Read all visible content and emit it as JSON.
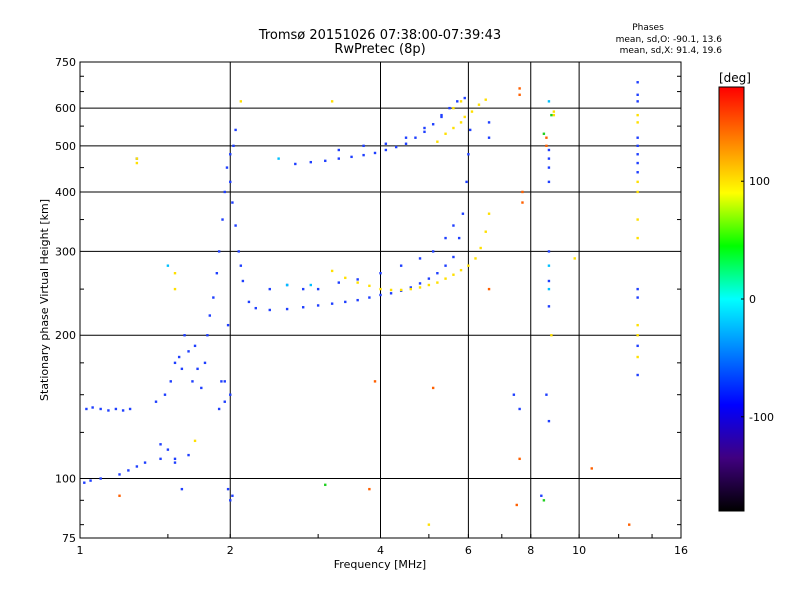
{
  "chart_data": {
    "type": "scatter",
    "title": "Tromsø 20151026 07:38:00-07:39:43",
    "subtitle": "RwPretec (8p)",
    "xlabel": "Frequency [MHz]",
    "ylabel": "Stationary phase Virtual Height [km]",
    "x_scale": "log2",
    "y_scale": "log",
    "xlim": [
      1,
      16
    ],
    "ylim": [
      75,
      750
    ],
    "x_ticks": [
      1,
      2,
      4,
      6,
      8,
      10,
      16
    ],
    "x_tick_labels": [
      "1",
      "2",
      "4",
      "6",
      "8",
      "10",
      "16"
    ],
    "y_ticks": [
      75,
      100,
      200,
      300,
      400,
      500,
      600,
      750
    ],
    "y_tick_labels": [
      "75",
      "100",
      "200",
      "300",
      "400",
      "500",
      "600",
      "750"
    ],
    "grid": true,
    "phases_box": {
      "heading": "Phases",
      "line_o": "mean, sd,O: -90.1, 13.6",
      "line_x": "mean, sd,X:  91.4, 19.6"
    },
    "colorbar": {
      "label": "[deg]",
      "range": [
        -180,
        180
      ],
      "ticks": [
        100,
        0,
        -100
      ],
      "tick_labels": [
        "100",
        "0",
        "-100"
      ],
      "colors": [
        "#ff0000",
        "#ff8000",
        "#ffff00",
        "#00ff00",
        "#00ffff",
        "#0080ff",
        "#0000ff",
        "#400080",
        "#000000"
      ]
    },
    "series": [
      {
        "mode": "O",
        "phase_deg": -90,
        "color": "#1f3fff",
        "points": [
          [
            1.02,
            98
          ],
          [
            1.05,
            99
          ],
          [
            1.1,
            100
          ],
          [
            1.2,
            102
          ],
          [
            1.25,
            104
          ],
          [
            1.3,
            106
          ],
          [
            1.35,
            108
          ],
          [
            1.45,
            110
          ],
          [
            1.55,
            108
          ],
          [
            1.65,
            112
          ],
          [
            1.03,
            140
          ],
          [
            1.06,
            141
          ],
          [
            1.1,
            140
          ],
          [
            1.14,
            139
          ],
          [
            1.18,
            140
          ],
          [
            1.22,
            139
          ],
          [
            1.26,
            140
          ],
          [
            1.42,
            145
          ],
          [
            1.48,
            150
          ],
          [
            1.52,
            160
          ],
          [
            1.55,
            175
          ],
          [
            1.58,
            180
          ],
          [
            1.6,
            170
          ],
          [
            1.62,
            200
          ],
          [
            1.65,
            185
          ],
          [
            1.68,
            160
          ],
          [
            1.7,
            190
          ],
          [
            1.72,
            170
          ],
          [
            1.75,
            155
          ],
          [
            1.78,
            175
          ],
          [
            1.8,
            200
          ],
          [
            1.82,
            220
          ],
          [
            1.85,
            240
          ],
          [
            1.88,
            270
          ],
          [
            1.9,
            300
          ],
          [
            1.93,
            350
          ],
          [
            1.95,
            400
          ],
          [
            1.97,
            450
          ],
          [
            2.0,
            420
          ],
          [
            2.02,
            380
          ],
          [
            2.05,
            340
          ],
          [
            2.08,
            300
          ],
          [
            2.1,
            280
          ],
          [
            2.12,
            260
          ],
          [
            1.9,
            140
          ],
          [
            1.95,
            145
          ],
          [
            2.0,
            150
          ],
          [
            1.92,
            160
          ],
          [
            1.98,
            210
          ],
          [
            2.03,
            500
          ],
          [
            2.05,
            540
          ],
          [
            2.18,
            235
          ],
          [
            2.25,
            228
          ],
          [
            2.4,
            226
          ],
          [
            2.6,
            227
          ],
          [
            2.8,
            229
          ],
          [
            3.0,
            231
          ],
          [
            3.2,
            233
          ],
          [
            3.4,
            235
          ],
          [
            3.6,
            237
          ],
          [
            3.8,
            240
          ],
          [
            4.0,
            243
          ],
          [
            4.2,
            245
          ],
          [
            4.4,
            248
          ],
          [
            4.6,
            252
          ],
          [
            4.8,
            257
          ],
          [
            5.0,
            263
          ],
          [
            5.2,
            270
          ],
          [
            5.4,
            280
          ],
          [
            5.6,
            292
          ],
          [
            5.75,
            320
          ],
          [
            5.85,
            360
          ],
          [
            5.95,
            420
          ],
          [
            6.0,
            480
          ],
          [
            6.05,
            540
          ],
          [
            2.4,
            250
          ],
          [
            2.6,
            255
          ],
          [
            2.8,
            250
          ],
          [
            3.0,
            250
          ],
          [
            3.3,
            258
          ],
          [
            3.6,
            262
          ],
          [
            4.0,
            270
          ],
          [
            4.4,
            280
          ],
          [
            4.8,
            290
          ],
          [
            5.1,
            300
          ],
          [
            5.4,
            320
          ],
          [
            5.6,
            340
          ],
          [
            2.9,
            462
          ],
          [
            3.1,
            465
          ],
          [
            3.3,
            470
          ],
          [
            3.5,
            474
          ],
          [
            3.7,
            478
          ],
          [
            3.9,
            483
          ],
          [
            4.1,
            490
          ],
          [
            4.3,
            497
          ],
          [
            4.5,
            505
          ],
          [
            4.7,
            520
          ],
          [
            4.9,
            535
          ],
          [
            5.1,
            555
          ],
          [
            5.3,
            580
          ],
          [
            5.5,
            600
          ],
          [
            5.7,
            620
          ],
          [
            5.9,
            630
          ],
          [
            3.3,
            490
          ],
          [
            3.7,
            500
          ],
          [
            4.1,
            505
          ],
          [
            4.5,
            520
          ],
          [
            4.9,
            545
          ],
          [
            5.3,
            575
          ],
          [
            1.3,
            470
          ],
          [
            1.95,
            160
          ],
          [
            2.0,
            480
          ],
          [
            2.7,
            458
          ],
          [
            6.6,
            560
          ],
          [
            6.6,
            520
          ],
          [
            2.0,
            90
          ],
          [
            2.02,
            92
          ],
          [
            1.98,
            95
          ],
          [
            1.6,
            95
          ],
          [
            1.55,
            110
          ],
          [
            1.5,
            115
          ],
          [
            1.45,
            118
          ],
          [
            7.4,
            150
          ],
          [
            7.6,
            140
          ],
          [
            8.4,
            92
          ],
          [
            8.7,
            132
          ],
          [
            8.6,
            150
          ],
          [
            8.7,
            470
          ],
          [
            8.7,
            490
          ],
          [
            8.7,
            450
          ],
          [
            8.7,
            420
          ],
          [
            8.7,
            300
          ],
          [
            8.7,
            260
          ],
          [
            8.7,
            230
          ],
          [
            13.1,
            520
          ],
          [
            13.1,
            500
          ],
          [
            13.1,
            480
          ],
          [
            13.1,
            460
          ],
          [
            13.1,
            440
          ],
          [
            13.1,
            250
          ],
          [
            13.1,
            240
          ],
          [
            13.1,
            190
          ],
          [
            13.1,
            165
          ],
          [
            13.1,
            620
          ],
          [
            13.1,
            640
          ],
          [
            13.1,
            680
          ]
        ]
      },
      {
        "mode": "X",
        "phase_deg": 91,
        "color": "#ffe000",
        "points": [
          [
            3.2,
            273
          ],
          [
            3.4,
            264
          ],
          [
            3.6,
            258
          ],
          [
            3.8,
            254
          ],
          [
            4.0,
            250
          ],
          [
            4.2,
            249
          ],
          [
            4.4,
            249
          ],
          [
            4.6,
            250
          ],
          [
            4.8,
            252
          ],
          [
            5.0,
            255
          ],
          [
            5.2,
            258
          ],
          [
            5.4,
            263
          ],
          [
            5.6,
            268
          ],
          [
            5.8,
            274
          ],
          [
            6.0,
            280
          ],
          [
            6.2,
            290
          ],
          [
            6.35,
            305
          ],
          [
            6.5,
            330
          ],
          [
            6.6,
            360
          ],
          [
            5.2,
            510
          ],
          [
            5.4,
            530
          ],
          [
            5.6,
            545
          ],
          [
            5.8,
            560
          ],
          [
            5.9,
            575
          ],
          [
            6.1,
            590
          ],
          [
            6.3,
            610
          ],
          [
            6.5,
            625
          ],
          [
            5.6,
            600
          ],
          [
            5.8,
            620
          ],
          [
            1.55,
            270
          ],
          [
            1.55,
            250
          ],
          [
            1.7,
            120
          ],
          [
            2.1,
            620
          ],
          [
            3.2,
            620
          ],
          [
            1.3,
            470
          ],
          [
            1.3,
            460
          ],
          [
            13.1,
            580
          ],
          [
            13.1,
            560
          ],
          [
            13.1,
            420
          ],
          [
            13.1,
            400
          ],
          [
            13.1,
            350
          ],
          [
            13.1,
            320
          ],
          [
            13.1,
            200
          ],
          [
            13.1,
            180
          ],
          [
            13.1,
            210
          ],
          [
            8.9,
            590
          ],
          [
            8.9,
            580
          ],
          [
            5.0,
            80
          ],
          [
            8.8,
            200
          ],
          [
            9.8,
            290
          ]
        ]
      },
      {
        "mode": "other",
        "phase_deg": 140,
        "color": "#ff6000",
        "points": [
          [
            7.6,
            660
          ],
          [
            7.6,
            640
          ],
          [
            7.7,
            400
          ],
          [
            7.7,
            380
          ],
          [
            7.6,
            110
          ],
          [
            8.6,
            520
          ],
          [
            8.6,
            500
          ],
          [
            3.9,
            160
          ],
          [
            5.1,
            155
          ],
          [
            10.6,
            105
          ],
          [
            12.6,
            80
          ],
          [
            1.2,
            92
          ],
          [
            3.8,
            95
          ],
          [
            6.6,
            250
          ],
          [
            7.5,
            88
          ]
        ]
      },
      {
        "mode": "other",
        "phase_deg": 30,
        "color": "#20d020",
        "points": [
          [
            8.5,
            90
          ],
          [
            3.1,
            97
          ],
          [
            8.8,
            580
          ],
          [
            8.5,
            530
          ]
        ]
      },
      {
        "mode": "other",
        "phase_deg": -20,
        "color": "#00c0ff",
        "points": [
          [
            2.5,
            470
          ],
          [
            2.6,
            255
          ],
          [
            2.9,
            255
          ],
          [
            8.7,
            280
          ],
          [
            8.7,
            250
          ],
          [
            8.7,
            620
          ],
          [
            1.5,
            280
          ]
        ]
      }
    ]
  }
}
